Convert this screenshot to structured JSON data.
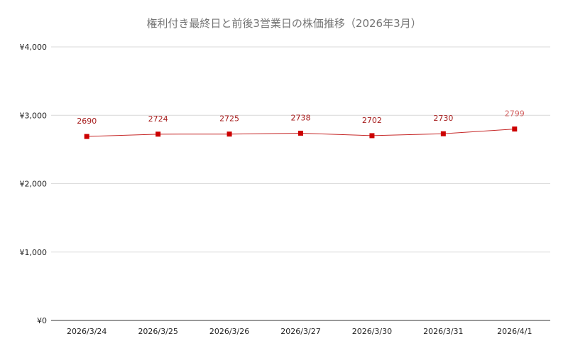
{
  "chart_data": {
    "type": "line",
    "title": "権利付き最終日と前後3営業日の株価推移（2026年3月）",
    "categories": [
      "2026/3/24",
      "2026/3/25",
      "2026/3/26",
      "2026/3/27",
      "2026/3/30",
      "2026/3/31",
      "2026/4/1"
    ],
    "series": [
      {
        "values": [
          2690,
          2724,
          2725,
          2738,
          2702,
          2730,
          2799
        ]
      }
    ],
    "data_labels": [
      "2690",
      "2724",
      "2725",
      "2738",
      "2702",
      "2730",
      "2799"
    ],
    "yticks": [
      {
        "value": 0,
        "label": "¥0"
      },
      {
        "value": 1000,
        "label": "¥1,000"
      },
      {
        "value": 2000,
        "label": "¥2,000"
      },
      {
        "value": 3000,
        "label": "¥3,000"
      },
      {
        "value": 4000,
        "label": "¥4,000"
      }
    ],
    "ylim": [
      0,
      4000
    ],
    "grid": true,
    "legend": "none",
    "colors": {
      "line": "#c62828",
      "marker": "#cc0000",
      "label": "#a61c1c",
      "grid": "#d9d9d9"
    }
  }
}
